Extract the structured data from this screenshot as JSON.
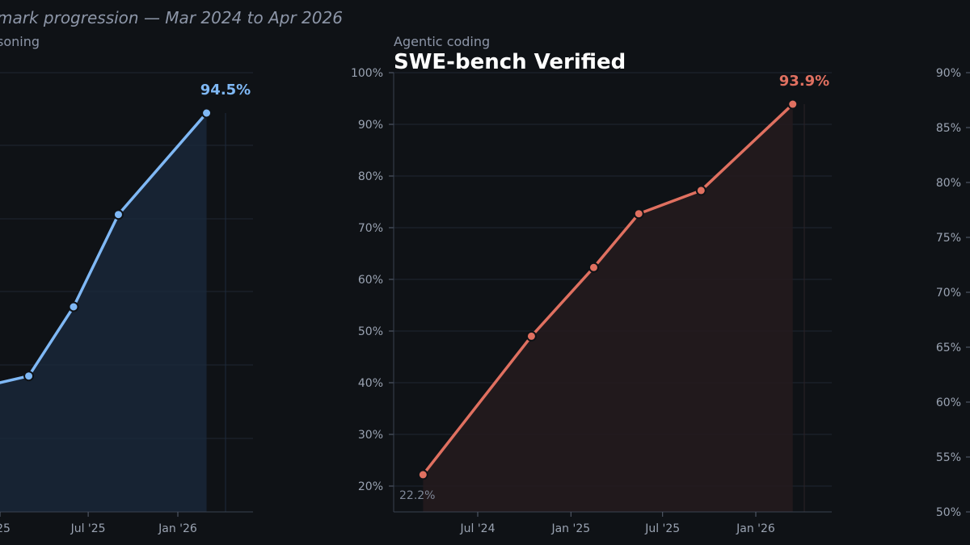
{
  "suptitle": "mark progression — Mar 2024 to Apr 2026",
  "colors": {
    "left": "#7fb8f5",
    "middle": "#e07060",
    "background": "#0f1216",
    "grid": "#1f2733"
  },
  "chart_data": [
    {
      "type": "line",
      "subtitle": "soning",
      "title": "",
      "x_ticks": [
        "25",
        "Jul '25",
        "Jan '26"
      ],
      "series": [
        {
          "x": [
            "2025-03-01",
            "2025-06-01",
            "2025-09-01",
            "2026-03-01"
          ],
          "y": [
            66.0,
            73.5,
            83.5,
            94.5
          ]
        }
      ],
      "end_label": "94.5%",
      "grid": true
    },
    {
      "type": "line",
      "subtitle": "Agentic coding",
      "title": "SWE-bench Verified",
      "ylim": [
        15,
        100
      ],
      "y_ticks": [
        "20%",
        "30%",
        "40%",
        "50%",
        "60%",
        "70%",
        "80%",
        "90%",
        "100%"
      ],
      "x_ticks": [
        "Jul '24",
        "Jan '25",
        "Jul '25",
        "Jan '26"
      ],
      "series": [
        {
          "x": [
            "2024-03-15",
            "2024-10-15",
            "2025-02-15",
            "2025-05-15",
            "2025-09-15",
            "2026-03-15"
          ],
          "y": [
            22.2,
            49.0,
            62.3,
            72.7,
            77.2,
            93.9
          ]
        }
      ],
      "start_label": "22.2%",
      "end_label": "93.9%",
      "grid": true
    },
    {
      "type": "line",
      "subtitle": "",
      "title": "",
      "ylim": [
        50,
        90
      ],
      "y_ticks": [
        "50%",
        "55%",
        "60%",
        "65%",
        "70%",
        "75%",
        "80%",
        "85%",
        "90%"
      ],
      "x_ticks": [],
      "series": [],
      "grid": true
    }
  ]
}
